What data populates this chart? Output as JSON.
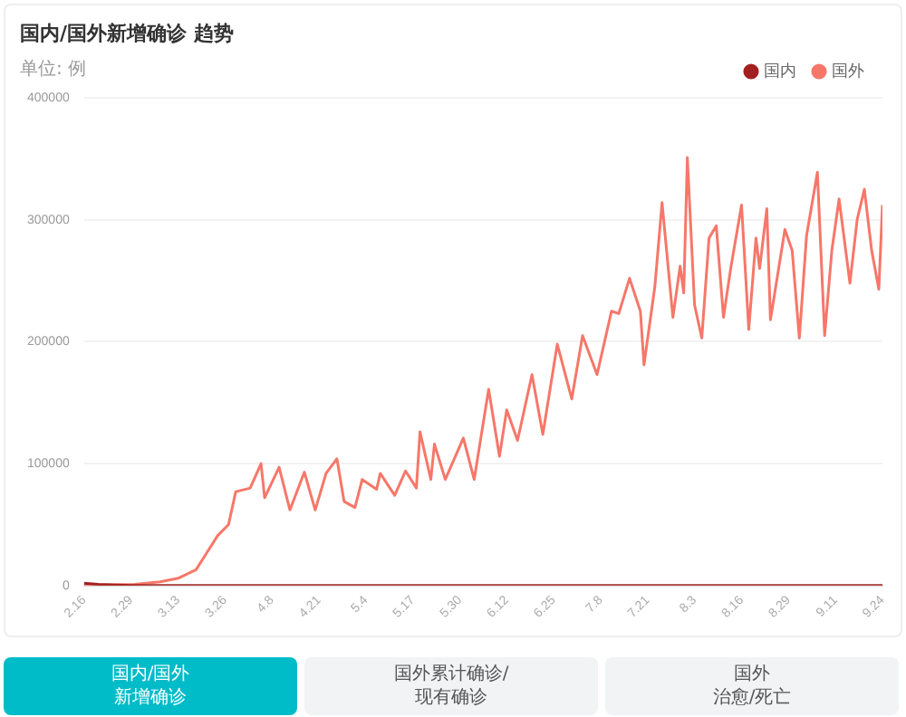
{
  "chart_data": {
    "type": "line",
    "title": "国内/国外新增确诊 趋势",
    "subtitle": "单位: 例",
    "series": [
      {
        "name": "国内",
        "color": "#a32020",
        "x": [
          "--02-16",
          "--02-20",
          "--02-29",
          "--03-08",
          "--07-20",
          "--07-30",
          "--08-10",
          "--09-24"
        ],
        "values": [
          2000,
          1000,
          0,
          0,
          0,
          0,
          0,
          0
        ]
      },
      {
        "name": "国外",
        "color": "#f6776a",
        "x": [
          "--02-16",
          "--03-01",
          "--03-08",
          "--03-13",
          "--03-18",
          "--03-21",
          "--03-24",
          "--03-27",
          "--03-29",
          "--04-02",
          "--04-05",
          "--04-06",
          "--04-10",
          "--04-13",
          "--04-17",
          "--04-20",
          "--04-23",
          "--04-26",
          "--04-28",
          "--05-01",
          "--05-03",
          "--05-07",
          "--05-08",
          "--05-12",
          "--05-15",
          "--05-18",
          "--05-19",
          "--05-22",
          "--05-23",
          "--05-26",
          "--05-31",
          "--06-03",
          "--06-07",
          "--06-10",
          "--06-12",
          "--06-15",
          "--06-19",
          "--06-22",
          "--06-26",
          "--06-30",
          "--07-03",
          "--07-07",
          "--07-11",
          "--07-13",
          "--07-16",
          "--07-19",
          "--07-20",
          "--07-23",
          "--07-25",
          "--07-28",
          "--07-30",
          "--07-31",
          "--08-01",
          "--08-03",
          "--08-05",
          "--08-07",
          "--08-09",
          "--08-11",
          "--08-13",
          "--08-16",
          "--08-18",
          "--08-20",
          "--08-21",
          "--08-23",
          "--08-24",
          "--08-28",
          "--08-30",
          "--09-01",
          "--09-03",
          "--09-06",
          "--09-08",
          "--09-10",
          "--09-12",
          "--09-15",
          "--09-17",
          "--09-19",
          "--09-21",
          "--09-23",
          "--09-24"
        ],
        "values": [
          0,
          1000,
          3000,
          6000,
          13000,
          27000,
          41000,
          50000,
          77000,
          80000,
          100000,
          72000,
          97000,
          62000,
          93000,
          62000,
          92000,
          104000,
          69000,
          64000,
          87000,
          79000,
          92000,
          74000,
          94000,
          80000,
          126000,
          87000,
          116000,
          87000,
          121000,
          87000,
          161000,
          106000,
          144000,
          119000,
          173000,
          124000,
          198000,
          153000,
          205000,
          173000,
          225000,
          223000,
          252000,
          225000,
          181000,
          245000,
          314000,
          220000,
          262000,
          240000,
          351000,
          230000,
          203000,
          285000,
          295000,
          220000,
          260000,
          312000,
          210000,
          285000,
          260000,
          309000,
          218000,
          292000,
          275000,
          203000,
          287000,
          339000,
          205000,
          275000,
          317000,
          248000,
          300000,
          325000,
          275000,
          243000,
          312000
        ]
      }
    ],
    "xlim": [
      "--02-16",
      "--09-24"
    ],
    "xticks": [
      {
        "value": "--02-16",
        "label": "2.16"
      },
      {
        "value": "--02-29",
        "label": "2.29"
      },
      {
        "value": "--03-13",
        "label": "3.13"
      },
      {
        "value": "--03-26",
        "label": "3.26"
      },
      {
        "value": "--04-08",
        "label": "4.8"
      },
      {
        "value": "--04-21",
        "label": "4.21"
      },
      {
        "value": "--05-04",
        "label": "5.4"
      },
      {
        "value": "--05-17",
        "label": "5.17"
      },
      {
        "value": "--05-30",
        "label": "5.30"
      },
      {
        "value": "--06-12",
        "label": "6.12"
      },
      {
        "value": "--06-25",
        "label": "6.25"
      },
      {
        "value": "--07-08",
        "label": "7.8"
      },
      {
        "value": "--07-21",
        "label": "7.21"
      },
      {
        "value": "--08-03",
        "label": "8.3"
      },
      {
        "value": "--08-16",
        "label": "8.16"
      },
      {
        "value": "--08-29",
        "label": "8.29"
      },
      {
        "value": "--09-11",
        "label": "9.11"
      },
      {
        "value": "--09-24",
        "label": "9.24"
      }
    ],
    "ylim": [
      0,
      400000
    ],
    "yticks": [
      0,
      100000,
      200000,
      300000,
      400000
    ],
    "grid": "y",
    "legend": "top right",
    "marker": "none",
    "line_style": "solid",
    "annotations": [
      "国内/国外",
      "新增确诊",
      "国外累计确诊/",
      "现有确诊",
      "国外",
      "治愈/死亡"
    ]
  }
}
